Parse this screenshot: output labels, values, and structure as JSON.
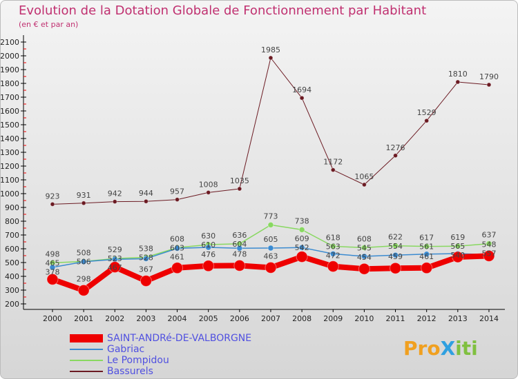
{
  "chart_data": {
    "type": "line",
    "title": "Evolution de la Dotation Globale de Fonctionnement par Habitant",
    "subtitle": "(en € et par an)",
    "x": [
      "2000",
      "2001",
      "2002",
      "2003",
      "2004",
      "2005",
      "2006",
      "2007",
      "2008",
      "2009",
      "2010",
      "2011",
      "2012",
      "2013",
      "2014"
    ],
    "ylim": [
      200,
      2100
    ],
    "yticks": [
      200,
      300,
      400,
      500,
      600,
      700,
      800,
      900,
      1000,
      1100,
      1200,
      1300,
      1400,
      1500,
      1600,
      1700,
      1800,
      1900,
      2000,
      2100
    ],
    "series": [
      {
        "name": "Bassurels",
        "color": "#6b1a22",
        "width": 1,
        "r": 3,
        "values": [
          923,
          931,
          942,
          944,
          957,
          1008,
          1035,
          1985,
          1694,
          1172,
          1065,
          1276,
          1529,
          1810,
          1790
        ]
      },
      {
        "name": "Le Pompidou",
        "color": "#88d860",
        "width": 1.5,
        "r": 4,
        "values": [
          498,
          508,
          529,
          538,
          608,
          630,
          636,
          773,
          738,
          618,
          608,
          622,
          617,
          619,
          637
        ]
      },
      {
        "name": "Gabriac",
        "color": "#3a8ad0",
        "width": 1.5,
        "r": 4,
        "values": [
          465,
          506,
          523,
          528,
          603,
          610,
          604,
          605,
          609,
          563,
          545,
          554,
          561,
          565,
          557
        ]
      },
      {
        "name": "SAINT-ANDRé-DE-VALBORGNE",
        "color": "#ee0000",
        "width": 8,
        "r": 8,
        "values": [
          378,
          298,
          467,
          367,
          461,
          476,
          478,
          463,
          542,
          472,
          454,
          459,
          461,
          540,
          548
        ]
      }
    ],
    "legend_order": [
      3,
      2,
      1,
      0
    ],
    "legend_position": "bottom-left"
  },
  "logo": {
    "text": "ProXiti",
    "parts": [
      "Pro",
      "X",
      "iti"
    ]
  }
}
